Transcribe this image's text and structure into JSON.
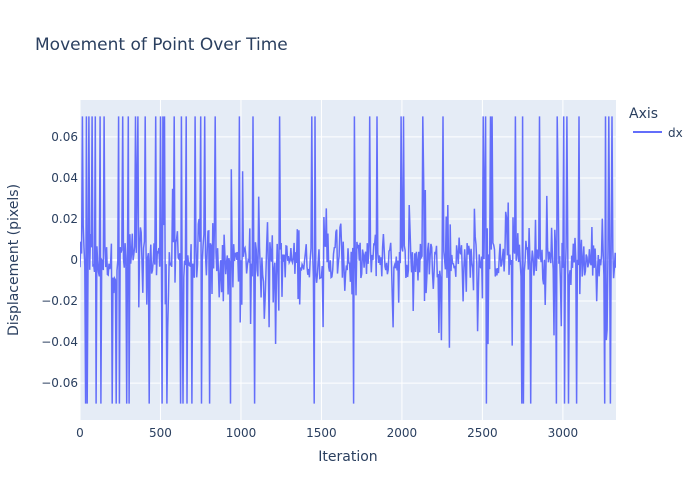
{
  "chart_data": {
    "type": "line",
    "title": "Movement of Point Over Time",
    "xlabel": "Iteration",
    "ylabel": "Displacement (pixels)",
    "xlim": [
      0,
      3330
    ],
    "ylim": [
      -0.078,
      0.078
    ],
    "x_ticks": [
      0,
      500,
      1000,
      1500,
      2000,
      2500,
      3000
    ],
    "y_ticks": [
      -0.06,
      -0.04,
      -0.02,
      0,
      0.02,
      0.04,
      0.06
    ],
    "y_tick_labels": [
      "−0.06",
      "−0.04",
      "−0.02",
      "0",
      "0.02",
      "0.04",
      "0.06"
    ],
    "grid": true,
    "legend": {
      "title": "Axis",
      "placement": "right"
    },
    "series": [
      {
        "name": "dx",
        "color": "#636efa",
        "spikes_high_x": [
          15,
          40,
          55,
          75,
          95,
          125,
          150,
          240,
          265,
          300,
          345,
          360,
          405,
          470,
          500,
          515,
          525,
          585,
          630,
          660,
          715,
          750,
          775,
          840,
          990,
          1075,
          1240,
          1440,
          1460,
          1705,
          1800,
          1845,
          1995,
          2010,
          2130,
          2255,
          2505,
          2520,
          2550,
          2560,
          2705,
          2750,
          2855,
          2965,
          3005,
          3025,
          3100,
          3265,
          3285,
          3305
        ],
        "spikes_low_x": [
          35,
          45,
          75,
          100,
          130,
          200,
          225,
          245,
          290,
          305,
          345,
          430,
          510,
          540,
          625,
          640,
          665,
          695,
          755,
          805,
          840,
          935,
          1085,
          1240,
          1455,
          1700,
          2010,
          2255,
          2505,
          2525,
          2560,
          2745,
          2755,
          2800,
          2960,
          3010,
          3035,
          3085,
          3260,
          3295
        ],
        "spike_level": 0.07
      }
    ]
  }
}
